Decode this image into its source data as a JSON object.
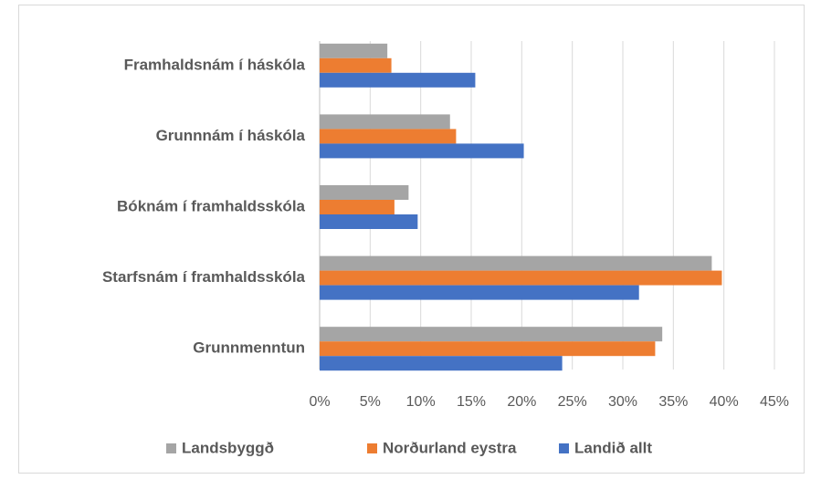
{
  "chart_data": {
    "type": "bar",
    "orientation": "horizontal",
    "categories": [
      "Framhaldsnám í háskóla",
      "Grunnnám í háskóla",
      "Bóknám í framhaldsskóla",
      "Starfsnám í framhaldsskóla",
      "Grunnmenntun"
    ],
    "series": [
      {
        "name": "Landsbyggð",
        "color": "#a5a5a5",
        "values": [
          6.7,
          12.9,
          8.8,
          38.8,
          33.9
        ]
      },
      {
        "name": "Norðurland eystra",
        "color": "#ed7d31",
        "values": [
          7.1,
          13.5,
          7.4,
          39.8,
          33.2
        ]
      },
      {
        "name": "Landið allt",
        "color": "#4472c4",
        "values": [
          15.4,
          20.2,
          9.7,
          31.6,
          24.0
        ]
      }
    ],
    "xlim": [
      0,
      45
    ],
    "xticks": [
      {
        "value": 0,
        "label": "0%"
      },
      {
        "value": 5,
        "label": "5%"
      },
      {
        "value": 10,
        "label": "10%"
      },
      {
        "value": 15,
        "label": "15%"
      },
      {
        "value": 20,
        "label": "20%"
      },
      {
        "value": 25,
        "label": "25%"
      },
      {
        "value": 30,
        "label": "30%"
      },
      {
        "value": 35,
        "label": "35%"
      },
      {
        "value": 40,
        "label": "40%"
      },
      {
        "value": 45,
        "label": "45%"
      }
    ],
    "grid": true,
    "legend": "bottom"
  }
}
